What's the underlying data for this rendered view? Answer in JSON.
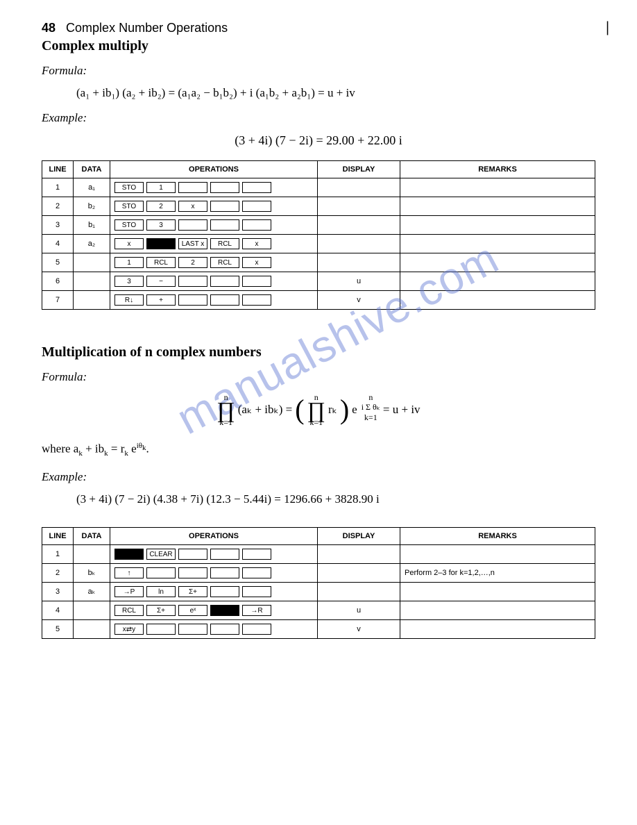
{
  "page": {
    "number": "48",
    "chapter": "Complex Number Operations"
  },
  "section1": {
    "title": "Complex multiply",
    "formula_label": "Formula:",
    "formula": "(a₁ + ib₁) (a₂ + ib₂) = (a₁a₂ − b₁b₂) + i (a₁b₂ + a₂b₁) = u + iv",
    "example_label": "Example:",
    "example": "(3 + 4i) (7 − 2i) = 29.00 + 22.00 i"
  },
  "table_headers": {
    "line": "LINE",
    "data": "DATA",
    "ops": "OPERATIONS",
    "disp": "DISPLAY",
    "rem": "REMARKS"
  },
  "table1": {
    "rows": [
      {
        "line": "1",
        "data": "a₁",
        "ops": [
          "STO",
          "1",
          "",
          "",
          ""
        ],
        "disp": "",
        "rem": ""
      },
      {
        "line": "2",
        "data": "b₂",
        "ops": [
          "STO",
          "2",
          "x",
          "",
          ""
        ],
        "disp": "",
        "rem": ""
      },
      {
        "line": "3",
        "data": "b₁",
        "ops": [
          "STO",
          "3",
          "",
          "",
          ""
        ],
        "disp": "",
        "rem": ""
      },
      {
        "line": "4",
        "data": "a₂",
        "ops": [
          "x",
          "SOLID",
          "LAST x",
          "RCL",
          "x"
        ],
        "disp": "",
        "rem": ""
      },
      {
        "line": "5",
        "data": "",
        "ops": [
          "1",
          "RCL",
          "2",
          "RCL",
          "x"
        ],
        "disp": "",
        "rem": ""
      },
      {
        "line": "6",
        "data": "",
        "ops": [
          "3",
          "−",
          "",
          "",
          ""
        ],
        "disp": "u",
        "rem": ""
      },
      {
        "line": "7",
        "data": "",
        "ops": [
          "R↓",
          "+",
          "",
          "",
          ""
        ],
        "disp": "v",
        "rem": ""
      }
    ]
  },
  "section2": {
    "title": "Multiplication of n complex numbers",
    "formula_label": "Formula:",
    "prod_top": "n",
    "prod_bot": "k=1",
    "body1": "(aₖ + ibₖ) =",
    "body2": "rₖ",
    "exp_top": "n",
    "exp_sum": "i  Σ θₖ",
    "exp_bot": "k=1",
    "rhs": " = u + iv",
    "where": "where aₖ + ibₖ = rₖ e^{iθₖ}.",
    "example_label": "Example:",
    "example": "(3 + 4i) (7 − 2i) (4.38 + 7i) (12.3 − 5.44i) = 1296.66 + 3828.90 i"
  },
  "table2": {
    "rows": [
      {
        "line": "1",
        "data": "",
        "ops": [
          "SOLID",
          "CLEAR",
          "",
          "",
          ""
        ],
        "disp": "",
        "rem": ""
      },
      {
        "line": "2",
        "data": "bₖ",
        "ops": [
          "↑",
          "",
          "",
          "",
          ""
        ],
        "disp": "",
        "rem": "Perform 2–3 for k=1,2,…,n"
      },
      {
        "line": "3",
        "data": "aₖ",
        "ops": [
          "→P",
          "ln",
          "Σ+",
          "",
          ""
        ],
        "disp": "",
        "rem": ""
      },
      {
        "line": "4",
        "data": "",
        "ops": [
          "RCL",
          "Σ+",
          "eˣ",
          "SOLID",
          "→R"
        ],
        "disp": "u",
        "rem": ""
      },
      {
        "line": "5",
        "data": "",
        "ops": [
          "x⇄y",
          "",
          "",
          "",
          ""
        ],
        "disp": "v",
        "rem": ""
      }
    ]
  },
  "watermark": "manualshive.com",
  "style": {
    "text_color": "#000000",
    "background": "#ffffff",
    "watermark_color": "rgba(95,120,210,0.45)",
    "key_border": "#000000",
    "font_body": "Times New Roman",
    "font_table": "Arial"
  }
}
